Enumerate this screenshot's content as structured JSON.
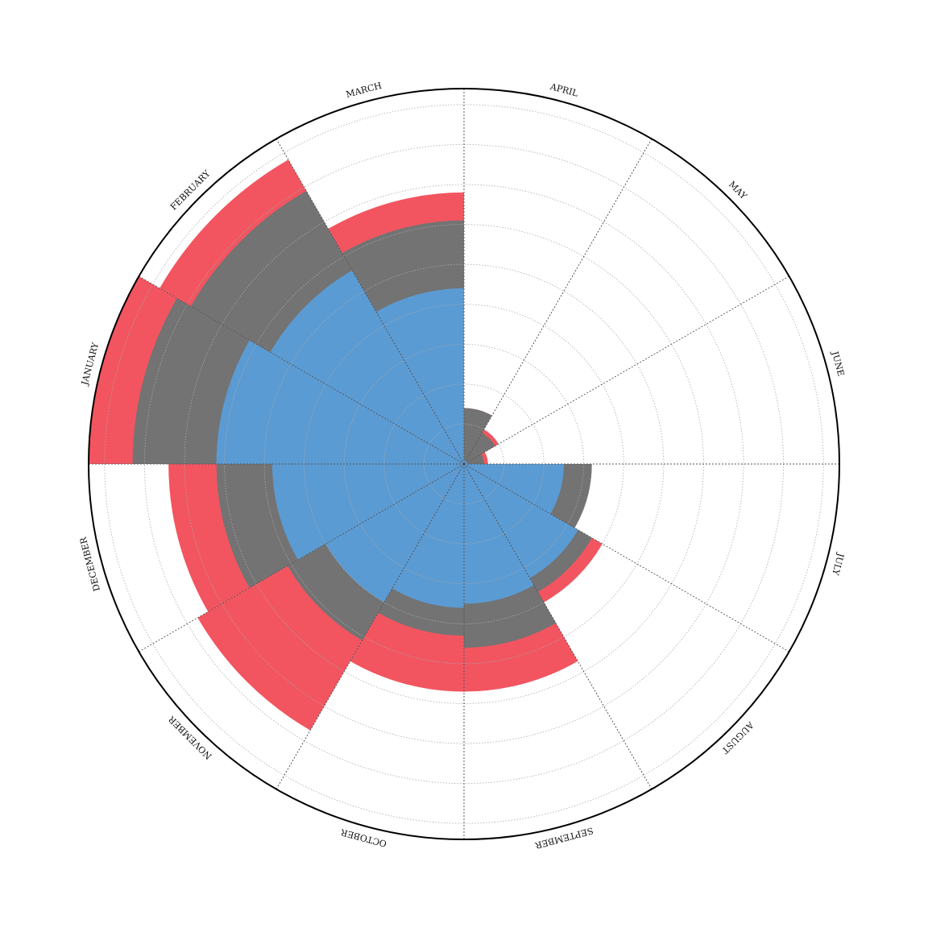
{
  "colors": {
    "background": "#ffffff",
    "frame": "#000000",
    "grid": "#aaaaaa",
    "spoke": "#555555"
  },
  "chart_data": {
    "type": "polar-area",
    "title": "",
    "legend": "none",
    "grid": true,
    "rmax": 470,
    "gridlines": [
      50,
      100,
      150,
      200,
      250,
      300,
      350,
      400,
      450
    ],
    "categories": [
      "APRIL",
      "MAY",
      "JUNE",
      "JULY",
      "AUGUST",
      "SEPTEMBER",
      "OCTOBER",
      "NOVEMBER",
      "DECEMBER",
      "JANUARY",
      "FEBRUARY",
      "MARCH"
    ],
    "series": [
      {
        "color": "#f25560",
        "values": [
          70,
          50,
          30,
          160,
          200,
          285,
          285,
          385,
          370,
          470,
          440,
          340
        ]
      },
      {
        "color": "#737373",
        "values": [
          70,
          45,
          25,
          160,
          185,
          230,
          215,
          255,
          310,
          415,
          395,
          305
        ]
      },
      {
        "color": "#5b9bd3",
        "values": [
          5,
          5,
          5,
          125,
          165,
          175,
          180,
          200,
          240,
          310,
          280,
          220
        ]
      }
    ]
  }
}
